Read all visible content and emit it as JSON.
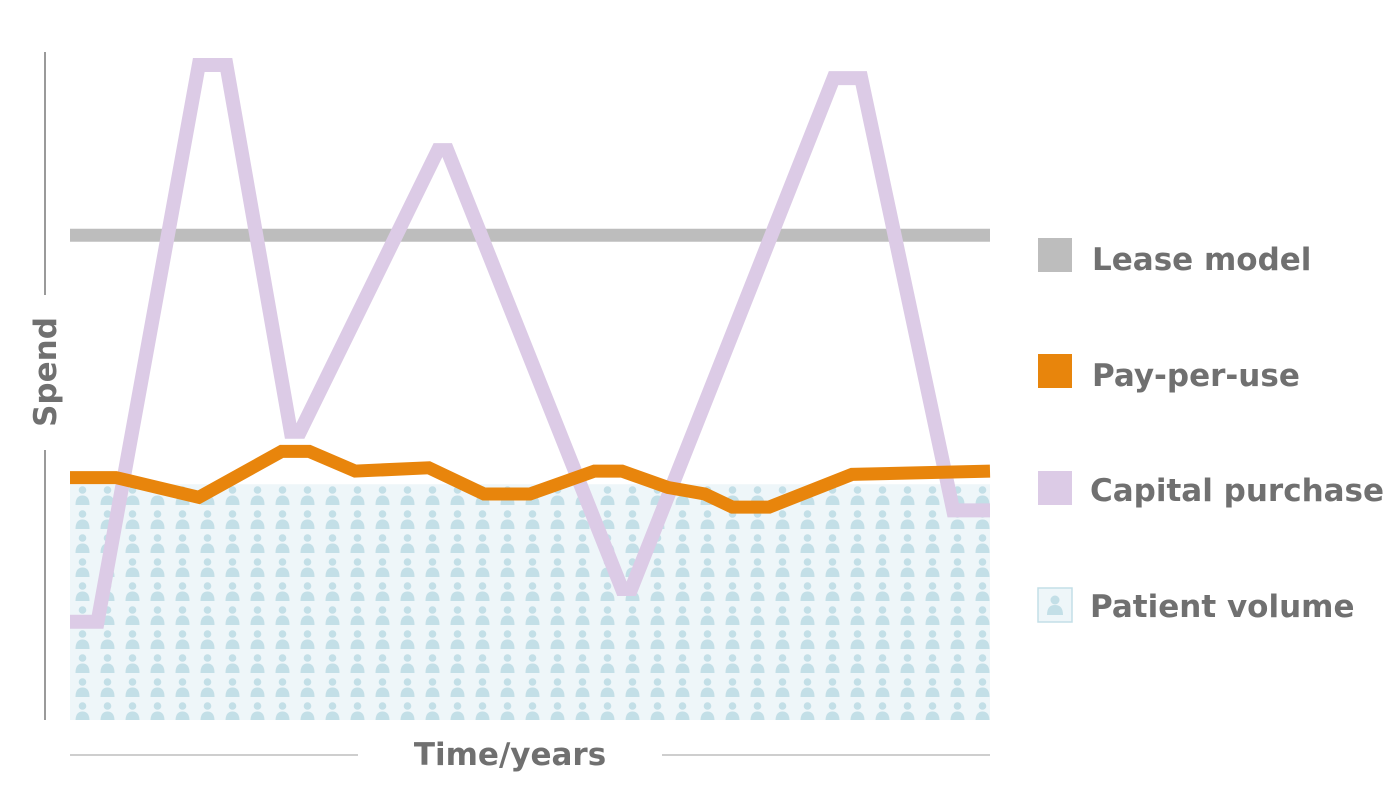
{
  "chart_data": {
    "type": "line",
    "xlabel": "Time/years",
    "ylabel": "Spend",
    "x_ticks_shown": false,
    "y_ticks_shown": false,
    "grid": false,
    "legend_position": "right",
    "colors": {
      "lease": "#bdbdbd",
      "pay_per_use": "#e8850c",
      "capital": "#dccbe6",
      "patient_fill": "#eef6f9",
      "patient_icon": "#c3dfe7",
      "axis": "#9a9a9a",
      "text": "#707070"
    },
    "series": [
      {
        "key": "lease",
        "name": "Lease model",
        "points": [
          [
            0,
            74
          ],
          [
            100,
            74
          ]
        ]
      },
      {
        "key": "pay_per_use",
        "name": "Pay-per-use",
        "points": [
          [
            0,
            37
          ],
          [
            5,
            37
          ],
          [
            14,
            34
          ],
          [
            23,
            41
          ],
          [
            26,
            41
          ],
          [
            31,
            38
          ],
          [
            39,
            38.5
          ],
          [
            45,
            34.5
          ],
          [
            50,
            34.5
          ],
          [
            57,
            38
          ],
          [
            60,
            38
          ],
          [
            65,
            35.5
          ],
          [
            69,
            34.5
          ],
          [
            72,
            32.5
          ],
          [
            76,
            32.5
          ],
          [
            85,
            37.5
          ],
          [
            100,
            38
          ]
        ]
      },
      {
        "key": "capital",
        "name": "Capital purchase",
        "points": [
          [
            0,
            15
          ],
          [
            3,
            15
          ],
          [
            14,
            100
          ],
          [
            17,
            100
          ],
          [
            24,
            44
          ],
          [
            25,
            44
          ],
          [
            40,
            87
          ],
          [
            41,
            87
          ],
          [
            60,
            20
          ],
          [
            61,
            20
          ],
          [
            83,
            98
          ],
          [
            86,
            98
          ],
          [
            96,
            32
          ],
          [
            100,
            32
          ]
        ]
      },
      {
        "key": "patient",
        "name": "Patient volume",
        "type": "area",
        "points": [
          [
            0,
            36
          ],
          [
            100,
            36
          ]
        ]
      }
    ],
    "xlim": [
      0,
      100
    ],
    "ylim": [
      0,
      100
    ]
  }
}
